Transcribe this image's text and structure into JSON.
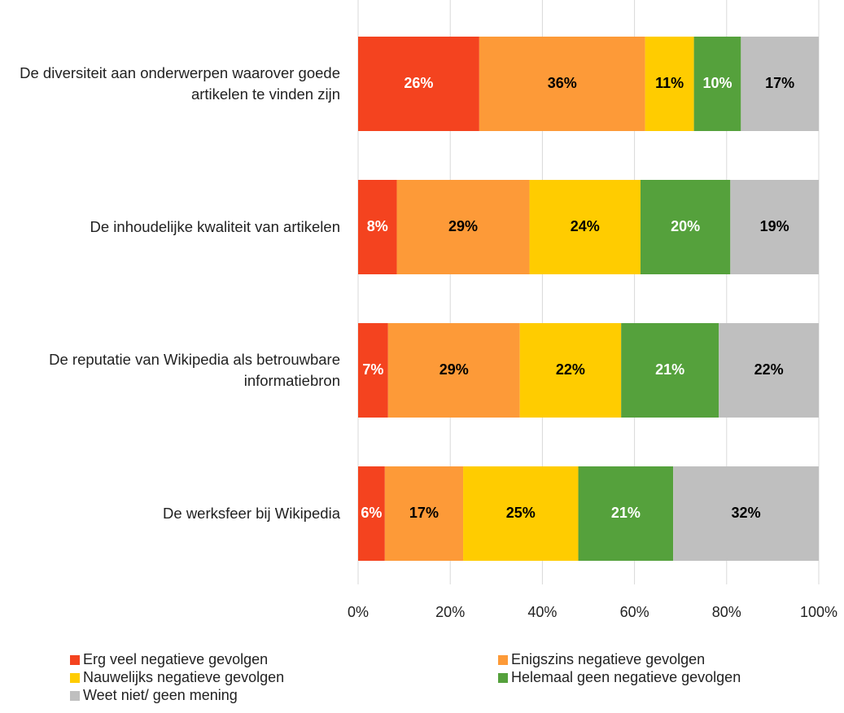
{
  "chart_data": {
    "type": "stacked_barh",
    "categories": [
      "De diversiteit aan onderwerpen waarover goede artikelen te vinden zijn",
      "De inhoudelijke kwaliteit van artikelen",
      "De reputatie van Wikipedia als betrouwbare informatiebron",
      "De werksfeer bij Wikipedia"
    ],
    "series": [
      {
        "name": "Erg veel negatieve gevolgen",
        "color": "#f4431f",
        "label_color": "#ffffff",
        "values": [
          26.3,
          8.4,
          6.5,
          5.8
        ],
        "value_labels": [
          "26%",
          "8%",
          "7%",
          "6%"
        ]
      },
      {
        "name": "Enigszins negatieve gevolgen",
        "color": "#fd9a38",
        "label_color": "#000000",
        "values": [
          36.0,
          28.8,
          28.6,
          17.0
        ],
        "value_labels": [
          "36%",
          "29%",
          "29%",
          "17%"
        ]
      },
      {
        "name": "Nauwelijks negatieve gevolgen",
        "color": "#ffcc00",
        "label_color": "#000000",
        "values": [
          10.6,
          24.1,
          22.0,
          25.0
        ],
        "value_labels": [
          "11%",
          "24%",
          "22%",
          "25%"
        ]
      },
      {
        "name": "Helemaal geen negatieve gevolgen",
        "color": "#55a13c",
        "label_color": "#ffffff",
        "values": [
          10.2,
          19.5,
          21.2,
          20.6
        ],
        "value_labels": [
          "10%",
          "20%",
          "21%",
          "21%"
        ]
      },
      {
        "name": "Weet niet/ geen mening",
        "color": "#bfbfbf",
        "label_color": "#000000",
        "values": [
          16.9,
          19.2,
          21.7,
          31.6
        ],
        "value_labels": [
          "17%",
          "19%",
          "22%",
          "32%"
        ]
      }
    ],
    "xlim": [
      0,
      100
    ],
    "xticks": [
      {
        "value": 0,
        "label": "0%"
      },
      {
        "value": 20,
        "label": "20%"
      },
      {
        "value": 40,
        "label": "40%"
      },
      {
        "value": 60,
        "label": "60%"
      },
      {
        "value": 80,
        "label": "80%"
      },
      {
        "value": 100,
        "label": "100%"
      }
    ],
    "grid": true
  }
}
